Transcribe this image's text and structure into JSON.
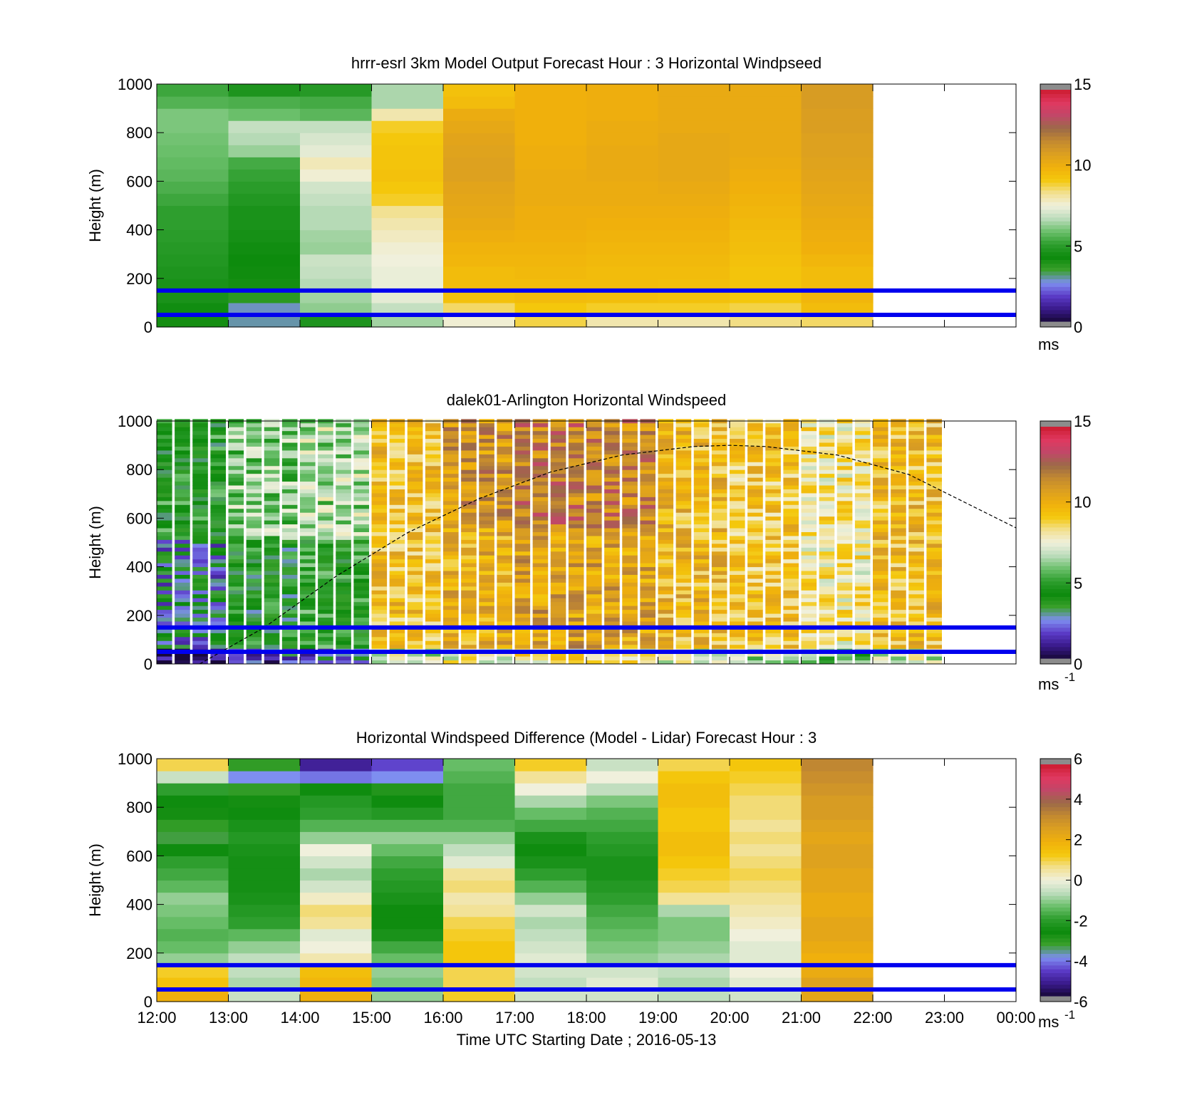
{
  "figure": {
    "xlabel": "Time UTC  Starting Date ; 2016-05-13",
    "x_tick_labels": [
      "12:00",
      "13:00",
      "14:00",
      "15:00",
      "16:00",
      "17:00",
      "18:00",
      "19:00",
      "20:00",
      "21:00",
      "22:00",
      "23:00",
      "00:00"
    ],
    "annotation_lines_height_m": [
      150,
      50
    ],
    "annotation_line_color": "#0000ee",
    "boundary_layer_curve_color": "#000000"
  },
  "colors": {
    "colormap": [
      "#18083a",
      "#3a1a8c",
      "#5c3cc8",
      "#7e8ef0",
      "#3aa02c",
      "#0c8a0c",
      "#2e9e2e",
      "#6cc06c",
      "#bcdcbc",
      "#f0f0dc",
      "#f2e090",
      "#f4c80c",
      "#f0b00c",
      "#dca020",
      "#c48a30",
      "#9c6a48",
      "#c04868",
      "#e03860",
      "#cc1c30"
    ],
    "out_of_range": "#8c8c8c"
  },
  "chart_data": [
    {
      "type": "heatmap",
      "title": "hrrr-esrl 3km Model Output   Forecast Hour : 3 Horizontal Windpseed",
      "ylabel": "Height (m)",
      "ylim": [
        0,
        1000
      ],
      "y_ticks": [
        "0",
        "200",
        "400",
        "600",
        "800",
        "1000"
      ],
      "colorbar": {
        "min": 0,
        "max": 15,
        "ticks": [
          "0",
          "5",
          "10",
          "15"
        ],
        "unit": "ms"
      },
      "x_hours": [
        12,
        13,
        14,
        15,
        16,
        17,
        18,
        19,
        20,
        21
      ],
      "bin_width_hours": 1,
      "heights_m": [
        25,
        75,
        125,
        175,
        225,
        275,
        325,
        375,
        425,
        475,
        525,
        575,
        625,
        675,
        725,
        775,
        825,
        875,
        925,
        975
      ],
      "values": [
        [
          4.0,
          4.3,
          4.5,
          4.5,
          4.6,
          4.7,
          4.8,
          4.9,
          5.0,
          5.0,
          5.2,
          5.4,
          5.6,
          5.7,
          5.8,
          5.9,
          6.0,
          6.0,
          5.5,
          5.2
        ],
        [
          2.8,
          2.7,
          3.6,
          4.0,
          4.1,
          4.2,
          4.3,
          4.4,
          4.5,
          4.5,
          4.7,
          4.9,
          5.1,
          5.3,
          6.3,
          6.6,
          6.8,
          5.8,
          5.4,
          4.6
        ],
        [
          4.6,
          6.2,
          6.4,
          6.6,
          6.8,
          6.9,
          6.3,
          6.4,
          6.6,
          6.6,
          6.8,
          7.0,
          7.6,
          7.9,
          7.3,
          7.1,
          6.8,
          5.6,
          5.3,
          4.8
        ],
        [
          6.4,
          6.8,
          7.3,
          7.4,
          7.4,
          7.5,
          7.6,
          7.8,
          8.0,
          8.3,
          9.0,
          9.2,
          9.4,
          9.3,
          9.3,
          9.2,
          9.0,
          8.0,
          6.5,
          6.5
        ],
        [
          7.6,
          8.6,
          9.4,
          9.6,
          9.6,
          9.8,
          9.9,
          10.1,
          10.3,
          10.4,
          10.5,
          10.6,
          10.8,
          10.8,
          10.7,
          10.6,
          10.4,
          10.2,
          9.6,
          9.4
        ],
        [
          8.8,
          9.2,
          9.6,
          9.6,
          9.7,
          9.8,
          9.9,
          10.0,
          10.1,
          10.1,
          10.2,
          10.2,
          10.2,
          10.1,
          10.1,
          10.0,
          10.0,
          10.0,
          10.0,
          10.0
        ],
        [
          8.0,
          9.0,
          9.5,
          9.6,
          9.6,
          9.7,
          9.8,
          9.9,
          10.0,
          10.1,
          10.2,
          10.2,
          10.3,
          10.3,
          10.3,
          10.2,
          10.2,
          10.1,
          10.1,
          10.1
        ],
        [
          8.0,
          9.0,
          9.4,
          9.5,
          9.6,
          9.7,
          9.8,
          9.9,
          10.0,
          10.1,
          10.2,
          10.3,
          10.4,
          10.4,
          10.4,
          10.4,
          10.3,
          10.3,
          10.3,
          10.3
        ],
        [
          8.4,
          8.8,
          9.2,
          9.3,
          9.3,
          9.4,
          9.5,
          9.6,
          9.7,
          9.8,
          9.9,
          10.0,
          10.1,
          10.2,
          10.3,
          10.3,
          10.3,
          10.3,
          10.3,
          10.3
        ],
        [
          8.6,
          9.6,
          9.8,
          9.6,
          9.6,
          9.8,
          10.0,
          10.1,
          10.2,
          10.3,
          10.4,
          10.5,
          10.6,
          10.7,
          10.8,
          10.8,
          10.9,
          10.9,
          11.0,
          11.0
        ]
      ]
    },
    {
      "type": "heatmap",
      "title": "dalek01-Arlington  Horizontal Windspeed",
      "ylabel": "Height (m)",
      "ylim": [
        0,
        1000
      ],
      "y_ticks": [
        "0",
        "200",
        "400",
        "600",
        "800",
        "1000"
      ],
      "colorbar": {
        "min": 0,
        "max": 15,
        "ticks": [
          "0",
          "5",
          "10",
          "15"
        ],
        "unit": "ms",
        "unit_exponent": "-1"
      },
      "time_range_hours": [
        12.0,
        22.8
      ],
      "bin_width_hours": 0.25,
      "height_bin_m": 16,
      "estimated_speed_at_60_to_600m_by_hour": {
        "12": 4.5,
        "13": 6.0,
        "14": 6.5,
        "15": 9.5,
        "16": 10.2,
        "17": 10.8,
        "18": 10.6,
        "19": 9.8,
        "20": 9.2,
        "21": 8.2,
        "22": 9.6
      },
      "boundary_layer_height_m": {
        "x": [
          12.6,
          13.5,
          14.5,
          15.5,
          16.5,
          17.5,
          18.5,
          19.5,
          20.0,
          20.5,
          21.5,
          22.5,
          24.0
        ],
        "y": [
          0,
          150,
          360,
          540,
          680,
          790,
          860,
          895,
          900,
          895,
          860,
          780,
          560
        ]
      }
    },
    {
      "type": "heatmap",
      "title": "Horizontal Windspeed Difference (Model - Lidar) Forecast Hour : 3",
      "ylabel": "Height (m)",
      "ylim": [
        0,
        1000
      ],
      "y_ticks": [
        "0",
        "200",
        "400",
        "600",
        "800",
        "1000"
      ],
      "colorbar": {
        "min": -6,
        "max": 6,
        "ticks": [
          "-6",
          "-4",
          "-2",
          "0",
          "2",
          "4",
          "6"
        ],
        "unit": "ms",
        "unit_exponent": "-1"
      },
      "x_hours": [
        12,
        13,
        14,
        15,
        16,
        17,
        18,
        19,
        20,
        21
      ],
      "bin_width_hours": 1,
      "heights_m": [
        25,
        75,
        125,
        175,
        225,
        275,
        325,
        375,
        425,
        475,
        525,
        575,
        625,
        675,
        725,
        775,
        825,
        875,
        925,
        975
      ],
      "values": [
        [
          2.0,
          1.5,
          1.2,
          -1.0,
          -1.4,
          -1.6,
          -1.4,
          -1.2,
          -1.0,
          -1.5,
          -1.8,
          -2.0,
          -2.6,
          -3.4,
          -3.2,
          -2.8,
          -2.6,
          -2.0,
          -0.5,
          1.0
        ],
        [
          -0.5,
          -0.8,
          -0.6,
          -0.6,
          -1.0,
          -1.5,
          -2.0,
          -2.2,
          -2.4,
          -2.5,
          -2.5,
          -2.5,
          -2.4,
          -2.2,
          -2.4,
          -2.6,
          -2.8,
          -3.2,
          -4.0,
          -3.2
        ],
        [
          2.0,
          1.8,
          1.6,
          0.4,
          0.0,
          -0.2,
          0.6,
          0.8,
          0.2,
          -0.4,
          -0.8,
          -0.4,
          0.0,
          -1.0,
          -1.6,
          -2.0,
          -2.2,
          -2.6,
          -4.2,
          -5.2
        ],
        [
          -1.0,
          -1.2,
          -1.0,
          -1.4,
          -1.8,
          -2.4,
          -2.6,
          -2.6,
          -2.4,
          -2.2,
          -2.0,
          -1.8,
          -1.4,
          -1.0,
          -1.6,
          -2.2,
          -2.6,
          -3.0,
          -4.0,
          -4.6
        ],
        [
          1.2,
          1.0,
          1.0,
          1.4,
          1.4,
          1.2,
          1.0,
          0.6,
          0.4,
          0.8,
          0.6,
          -0.2,
          -0.6,
          -1.0,
          -1.6,
          -1.8,
          -1.8,
          -1.8,
          -1.6,
          -1.4
        ],
        [
          -0.4,
          -0.6,
          -0.4,
          -0.2,
          -0.4,
          -0.6,
          -0.8,
          -0.4,
          -1.0,
          -1.6,
          -2.0,
          -2.4,
          -2.6,
          -2.4,
          -1.8,
          -1.4,
          -0.8,
          0.0,
          0.6,
          1.2
        ],
        [
          -0.4,
          -0.2,
          -0.4,
          -1.0,
          -1.2,
          -1.4,
          -1.6,
          -1.8,
          -2.0,
          -2.2,
          -2.4,
          -2.4,
          -2.2,
          -2.0,
          -1.8,
          -1.6,
          -1.2,
          -0.6,
          0.0,
          -0.5
        ],
        [
          -0.6,
          -0.8,
          -0.6,
          -0.8,
          -1.0,
          -1.2,
          -1.2,
          -0.8,
          0.6,
          1.0,
          1.2,
          1.4,
          1.6,
          1.6,
          1.4,
          1.4,
          1.6,
          1.6,
          1.4,
          1.0
        ],
        [
          -0.4,
          -0.2,
          0.0,
          -0.2,
          -0.2,
          0.0,
          0.2,
          0.4,
          0.6,
          0.8,
          1.0,
          0.8,
          0.6,
          0.8,
          0.6,
          0.8,
          0.8,
          1.0,
          1.2,
          1.4
        ],
        [
          2.4,
          2.6,
          2.2,
          2.0,
          2.2,
          2.4,
          2.4,
          2.2,
          2.2,
          2.4,
          2.4,
          2.6,
          2.6,
          2.4,
          2.6,
          2.8,
          2.8,
          3.0,
          3.2,
          3.4
        ]
      ]
    }
  ]
}
